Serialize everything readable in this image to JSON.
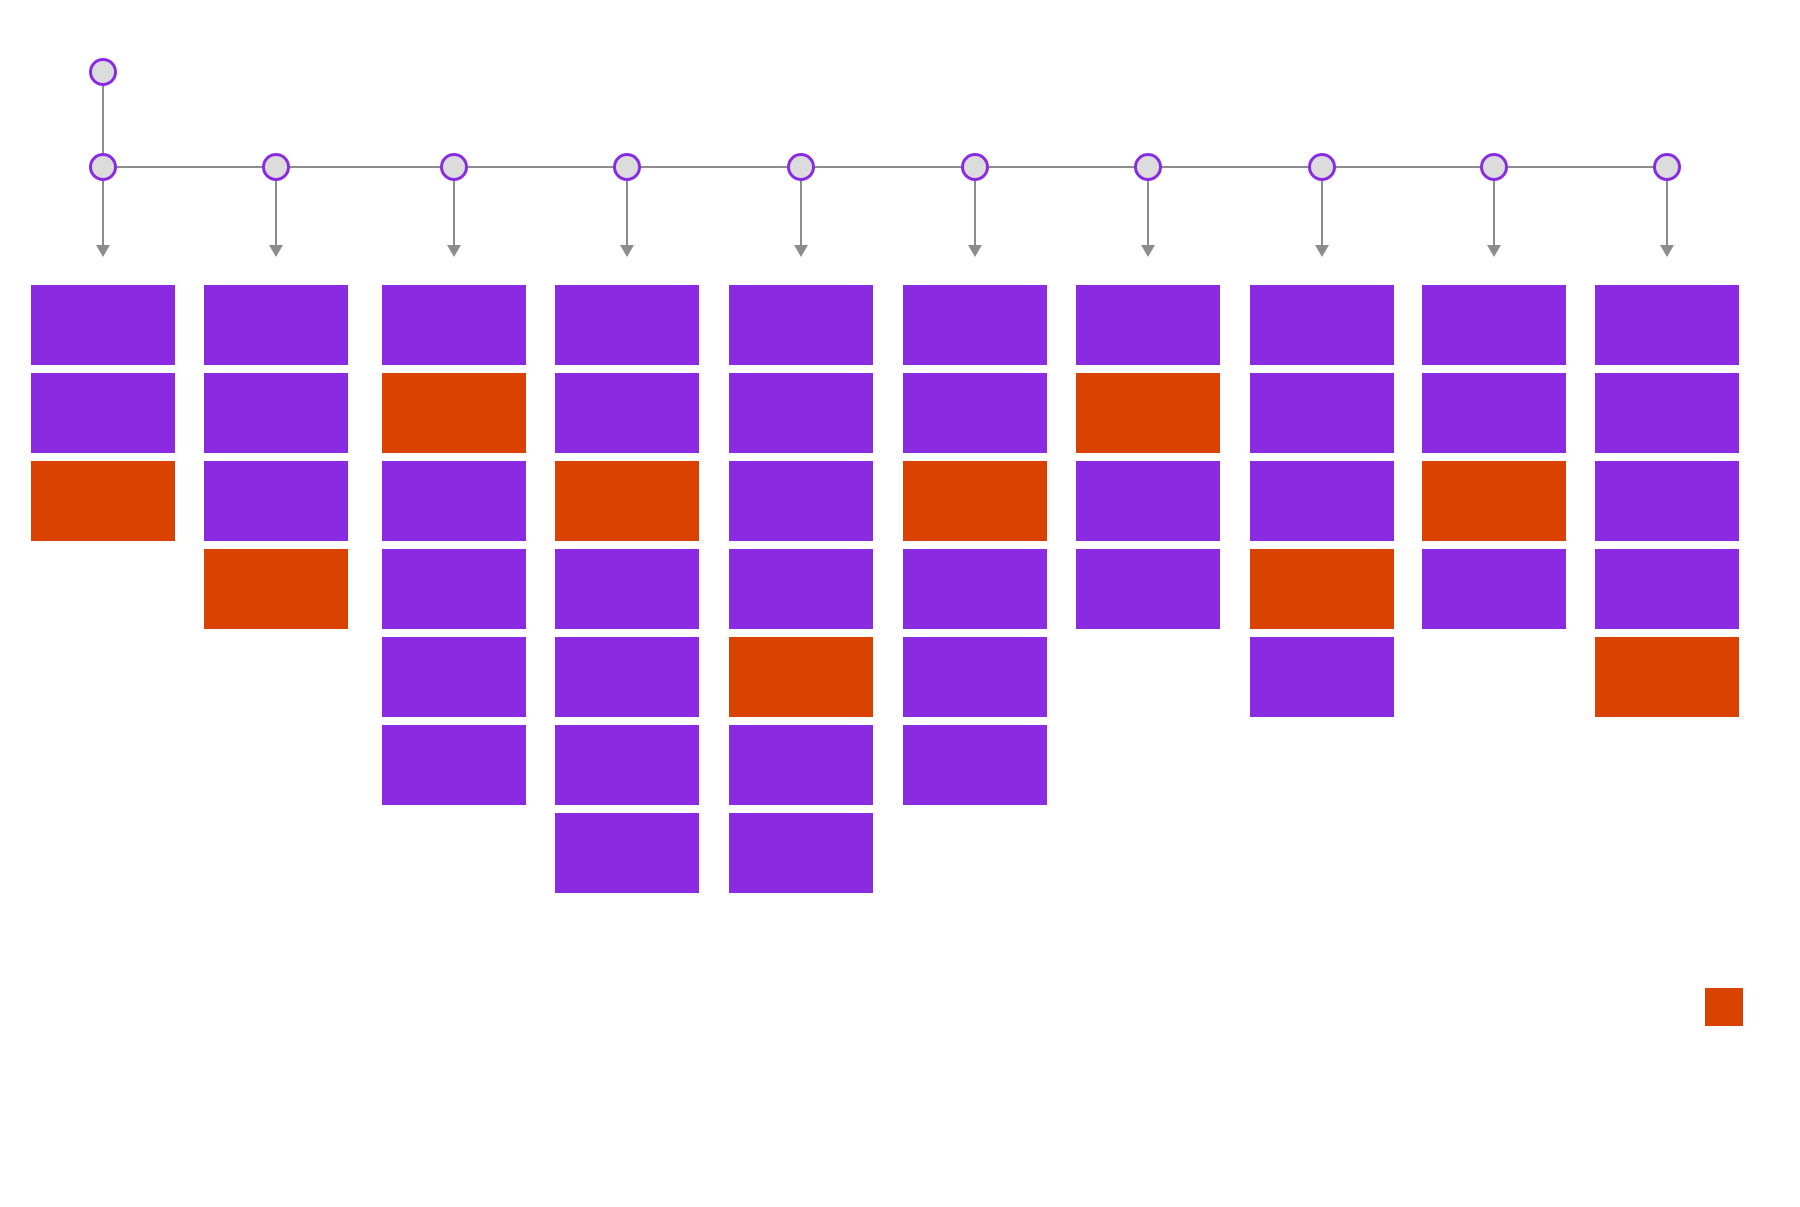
{
  "diagram": {
    "colors": {
      "background": "#ffffff",
      "block_default": "#8a2be2",
      "block_highlight": "#d94200",
      "node_fill": "#dcdcdc",
      "node_stroke": "#8a2be2",
      "connector": "#8c8c8c"
    },
    "root": {
      "id": "root",
      "has_node": true
    },
    "columns": [
      {
        "id": "col-1",
        "blocks": [
          "default",
          "default",
          "highlight"
        ]
      },
      {
        "id": "col-2",
        "blocks": [
          "default",
          "default",
          "default",
          "highlight"
        ]
      },
      {
        "id": "col-3",
        "blocks": [
          "default",
          "highlight",
          "default",
          "default",
          "default",
          "default"
        ]
      },
      {
        "id": "col-4",
        "blocks": [
          "default",
          "default",
          "highlight",
          "default",
          "default",
          "default",
          "default"
        ]
      },
      {
        "id": "col-5",
        "blocks": [
          "default",
          "default",
          "default",
          "default",
          "highlight",
          "default",
          "default"
        ]
      },
      {
        "id": "col-6",
        "blocks": [
          "default",
          "default",
          "highlight",
          "default",
          "default",
          "default"
        ]
      },
      {
        "id": "col-7",
        "blocks": [
          "default",
          "highlight",
          "default",
          "default"
        ]
      },
      {
        "id": "col-8",
        "blocks": [
          "default",
          "default",
          "default",
          "highlight",
          "default"
        ]
      },
      {
        "id": "col-9",
        "blocks": [
          "default",
          "default",
          "highlight",
          "default"
        ]
      },
      {
        "id": "col-10",
        "blocks": [
          "default",
          "default",
          "default",
          "default",
          "highlight"
        ]
      }
    ],
    "legend": {
      "swatch_kind": "highlight",
      "label": ""
    }
  }
}
